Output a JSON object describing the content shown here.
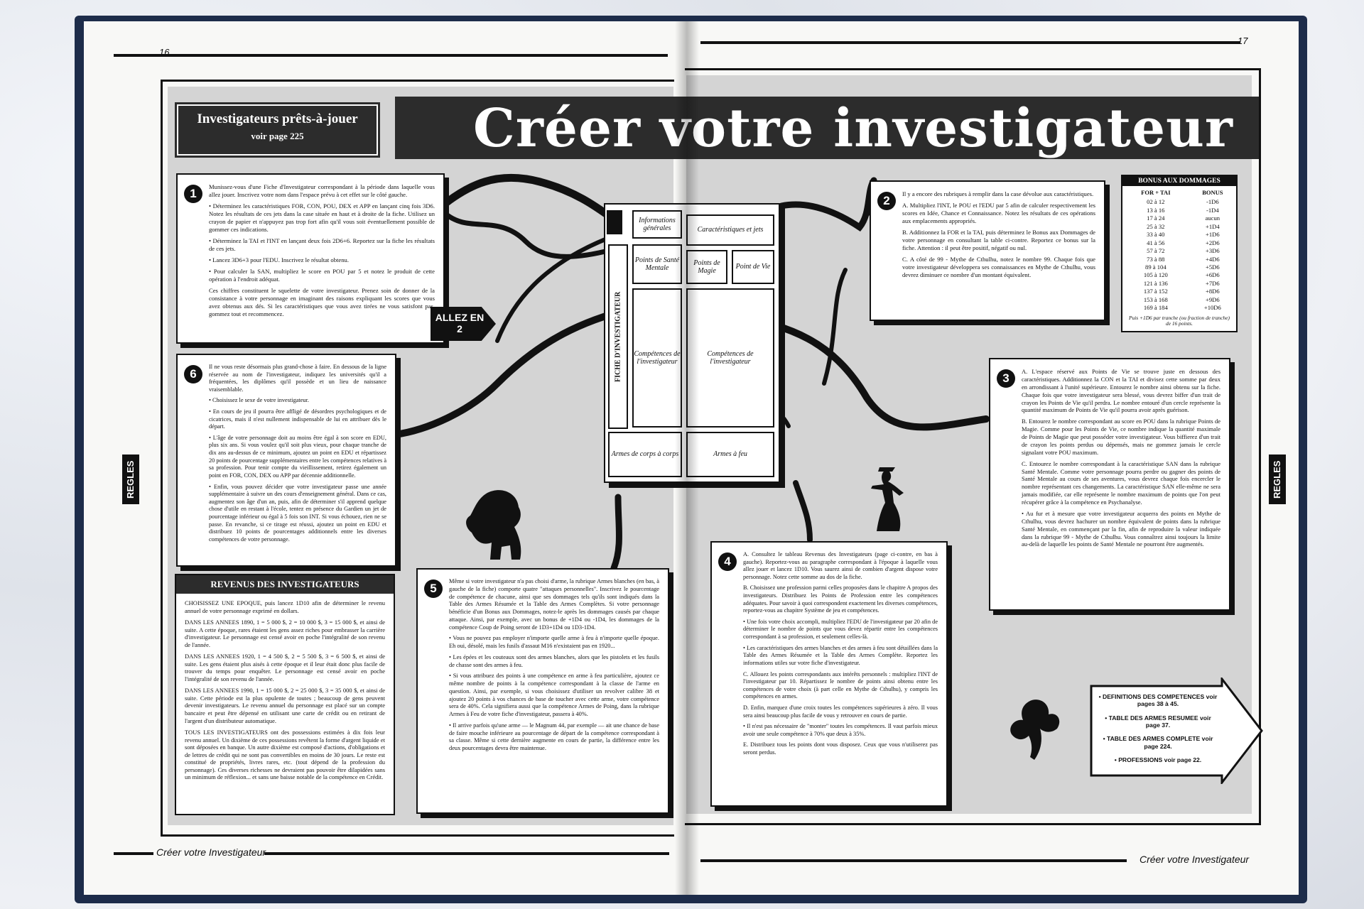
{
  "page": {
    "left_number": "16",
    "right_number": "17",
    "title": "Créer votre investigateur",
    "footer_left": "Créer votre Investigateur",
    "footer_right": "Créer votre Investigateur",
    "side_tab": "REGLES"
  },
  "ready": {
    "title": "Investigateurs prêts-à-jouer",
    "subtitle": "voir page 225"
  },
  "allez": {
    "line1": "ALLEZ EN",
    "line2": "2"
  },
  "sheet": {
    "fiche": "FICHE D'INVESTIGATEUR",
    "info": "Informations générales",
    "carac": "Caractéristiques et jets",
    "san": "Points de Santé Mentale",
    "magie": "Points de Magie",
    "vie": "Point de Vie",
    "comp_left": "Compétences de l'investigateur",
    "comp_right": "Compétences de l'investigateur",
    "armes_corps": "Armes de corps à corps",
    "armes_feu": "Armes à feu"
  },
  "box1": {
    "number": "1",
    "paragraphs": [
      "Munissez-vous d'une Fiche d'Investigateur correspondant à la période dans laquelle vous allez jouer. Inscrivez votre nom dans l'espace prévu à cet effet sur le côté gauche.",
      "• Déterminez les caractéristiques FOR, CON, POU, DEX et APP en lançant cinq fois 3D6. Notez les résultats de ces jets dans la case située en haut et à droite de la fiche. Utilisez un crayon de papier et n'appuyez pas trop fort afin qu'il vous soit éventuellement possible de gommer ces indications.",
      "• Déterminez la TAI et l'INT en lançant deux fois 2D6+6. Reportez sur la fiche les résultats de ces jets.",
      "• Lancez 3D6+3 pour l'EDU. Inscrivez le résultat obtenu.",
      "• Pour calculer la SAN, multipliez le score en POU par 5 et notez le produit de cette opération à l'endroit adéquat.",
      "Ces chiffres constituent le squelette de votre investigateur. Prenez soin de donner de la consistance à votre personnage en imaginant des raisons expliquant les scores que vous avez obtenus aux dés. Si les caractéristiques que vous avez tirées ne vous satisfont pas, gommez tout et recommencez."
    ]
  },
  "box6": {
    "number": "6",
    "paragraphs": [
      "Il ne vous reste désormais plus grand-chose à faire. En dessous de la ligne réservée au nom de l'investigateur, indiquez les universités qu'il a fréquentées, les diplômes qu'il possède et un lieu de naissance vraisemblable.",
      "• Choisissez le sexe de votre investigateur.",
      "• En cours de jeu il pourra être affligé de désordres psychologiques et de cicatrices, mais il n'est nullement indispensable de lui en attribuer dès le départ.",
      "• L'âge de votre personnage doit au moins être égal à son score en EDU, plus six ans. Si vous voulez qu'il soit plus vieux, pour chaque tranche de dix ans au-dessus de ce minimum, ajoutez un point en EDU et répartissez 20 points de pourcentage supplémentaires entre les compétences relatives à sa profession. Pour tenir compte du vieillissement, retirez également un point en FOR, CON, DEX ou APP par décennie additionnelle.",
      "• Enfin, vous pouvez décider que votre investigateur passe une année supplémentaire à suivre un des cours d'enseignement général. Dans ce cas, augmentez son âge d'un an, puis, afin de déterminer s'il apprend quelque chose d'utile en restant à l'école, tentez en présence du Gardien un jet de pourcentage inférieur ou égal à 5 fois son INT. Si vous échouez, rien ne se passe. En revanche, si ce tirage est réussi, ajoutez un point en EDU et distribuez 10 points de pourcentages additionnels entre les diverses compétences de votre personnage."
    ]
  },
  "revenus": {
    "title": "REVENUS DES INVESTIGATEURS",
    "paragraphs": [
      "CHOISISSEZ UNE EPOQUE, puis lancez 1D10 afin de déterminer le revenu annuel de votre personnage exprimé en dollars.",
      "DANS LES ANNEES 1890, 1 = 5 000 $, 2 = 10 000 $, 3 = 15 000 $, et ainsi de suite. A cette époque, rares étaient les gens assez riches pour embrasser la carrière d'investigateur. Le personnage est censé avoir en poche l'intégralité de son revenu de l'année.",
      "DANS LES ANNEES 1920, 1 = 4 500 $, 2 = 5 500 $, 3 = 6 500 $, et ainsi de suite. Les gens étaient plus aisés à cette époque et il leur était donc plus facile de trouver du temps pour enquêter. Le personnage est censé avoir en poche l'intégralité de son revenu de l'année.",
      "DANS LES ANNEES 1990, 1 = 15 000 $, 2 = 25 000 $, 3 = 35 000 $, et ainsi de suite. Cette période est la plus opulente de toutes ; beaucoup de gens peuvent devenir investigateurs. Le revenu annuel du personnage est placé sur un compte bancaire et peut être dépensé en utilisant une carte de crédit ou en retirant de l'argent d'un distributeur automatique.",
      "TOUS LES INVESTIGATEURS ont des possessions estimées à dix fois leur revenu annuel. Un dixième de ces possessions revêtent la forme d'argent liquide et sont déposées en banque. Un autre dixième est composé d'actions, d'obligations et de lettres de crédit qui ne sont pas convertibles en moins de 30 jours. Le reste est constitué de propriétés, livres rares, etc. (tout dépend de la profession du personnage). Ces diverses richesses ne devraient pas pouvoir être dilapidées sans un minimum de réflexion... et sans une baisse notable de la compétence en Crédit."
    ]
  },
  "box5": {
    "number": "5",
    "paragraphs": [
      "Même si votre investigateur n'a pas choisi d'arme, la rubrique Armes blanches (en bas, à gauche de la fiche) comporte quatre \"attaques personnelles\". Inscrivez le pourcentage de compétence de chacune, ainsi que ses dommages tels qu'ils sont indiqués dans la Table des Armes Résumée et la Table des Armes Complètes. Si votre personnage bénéficie d'un Bonus aux Dommages, notez-le après les dommages causés par chaque attaque. Ainsi, par exemple, avec un bonus de +1D4 ou -1D4, les dommages de la compétence Coup de Poing seront de 1D3+1D4 ou 1D3-1D4.",
      "• Vous ne pouvez pas employer n'importe quelle arme à feu à n'importe quelle époque. Eh oui, désolé, mais les fusils d'assaut M16 n'existaient pas en 1920...",
      "• Les épées et les couteaux sont des armes blanches, alors que les pistolets et les fusils de chasse sont des armes à feu.",
      "• Si vous attribuez des points à une compétence en arme à feu particulière, ajoutez ce même nombre de points à la compétence correspondant à la classe de l'arme en question. Ainsi, par exemple, si vous choisissez d'utiliser un revolver calibre 38 et ajoutez 20 points à vos chances de base de toucher avec cette arme, votre compétence sera de 40%. Cela signifiera aussi que la compétence Armes de Poing, dans la rubrique Armes à Feu de votre fiche d'investigateur, passera à 40%.",
      "• Il arrive parfois qu'une arme — le Magnum 44, par exemple — ait une chance de base de faire mouche inférieure au pourcentage de départ de la compétence correspondant à sa classe. Même si cette dernière augmente en cours de partie, la différence entre les deux pourcentages devra être maintenue."
    ]
  },
  "box2": {
    "number": "2",
    "paragraphs": [
      "Il y a encore des rubriques à remplir dans la case dévolue aux caractéristiques.",
      "A. Multipliez l'INT, le POU et l'EDU par 5 afin de calculer respectivement les scores en Idée, Chance et Connaissance. Notez les résultats de ces opérations aux emplacements appropriés.",
      "B. Additionnez la FOR et la TAI, puis déterminez le Bonus aux Dommages de votre personnage en consultant la table ci-contre. Reportez ce bonus sur la fiche. Attention : il peut être positif, négatif ou nul.",
      "C. A côté de 99 - Mythe de Cthulhu, notez le nombre 99. Chaque fois que votre investigateur développera ses connaissances en Mythe de Cthulhu, vous devrez diminuer ce nombre d'un montant équivalent."
    ]
  },
  "bonus": {
    "title": "BONUS AUX DOMMAGES",
    "col1": "FOR + TAI",
    "col2": "BONUS",
    "rows": [
      [
        "02 à 12",
        "-1D6"
      ],
      [
        "13 à 16",
        "-1D4"
      ],
      [
        "17 à 24",
        "aucun"
      ],
      [
        "25 à 32",
        "+1D4"
      ],
      [
        "33 à 40",
        "+1D6"
      ],
      [
        "41 à 56",
        "+2D6"
      ],
      [
        "57 à 72",
        "+3D6"
      ],
      [
        "73 à 88",
        "+4D6"
      ],
      [
        "89 à 104",
        "+5D6"
      ],
      [
        "105 à 120",
        "+6D6"
      ],
      [
        "121 à 136",
        "+7D6"
      ],
      [
        "137 à 152",
        "+8D6"
      ],
      [
        "153 à 168",
        "+9D6"
      ],
      [
        "169 à 184",
        "+10D6"
      ]
    ],
    "footnote": "Puis +1D6 par tranche (ou fraction de tranche) de 16 points."
  },
  "box3": {
    "number": "3",
    "paragraphs": [
      "A. L'espace réservé aux Points de Vie se trouve juste en dessous des caractéristiques. Additionnez la CON et la TAI et divisez cette somme par deux en arrondissant à l'unité supérieure. Entourez le nombre ainsi obtenu sur la fiche. Chaque fois que votre investigateur sera blessé, vous devrez biffer d'un trait de crayon les Points de Vie qu'il perdra. Le nombre entouré d'un cercle représente la quantité maximum de Points de Vie qu'il pourra avoir après guérison.",
      "B. Entourez le nombre correspondant au score en POU dans la rubrique Points de Magie. Comme pour les Points de Vie, ce nombre indique la quantité maximale de Points de Magie que peut posséder votre investigateur. Vous biffierez d'un trait de crayon les points perdus ou dépensés, mais ne gommez jamais le cercle signalant votre POU maximum.",
      "C. Entourez le nombre correspondant à la caractéristique SAN dans la rubrique Santé Mentale. Comme votre personnage pourra perdre ou gagner des points de Santé Mentale au cours de ses aventures, vous devrez chaque fois encercler le nombre représentant ces changements. La caractéristique SAN elle-même ne sera jamais modifiée, car elle représente le nombre maximum de points que l'on peut récupérer grâce à la compétence en Psychanalyse.",
      "• Au fur et à mesure que votre investigateur acquerra des points en Mythe de Cthulhu, vous devrez hachurer un nombre équivalent de points dans la rubrique Santé Mentale, en commençant par la fin, afin de reproduire la valeur indiquée dans la rubrique 99 - Mythe de Cthulhu. Vous connaîtrez ainsi toujours la limite au-delà de laquelle les points de Santé Mentale ne pourront être augmentés."
    ]
  },
  "box4": {
    "number": "4",
    "paragraphs": [
      "A. Consultez le tableau Revenus des Investigateurs (page ci-contre, en bas à gauche). Reportez-vous au paragraphe correspondant à l'époque à laquelle vous allez jouer et lancez 1D10. Vous saurez ainsi de combien d'argent dispose votre personnage. Notez cette somme au dos de la fiche.",
      "B. Choisissez une profession parmi celles proposées dans le chapitre A propos des investigateurs. Distribuez les Points de Profession entre les compétences adéquates. Pour savoir à quoi correspondent exactement les diverses compétences, reportez-vous au chapitre Système de jeu et compétences.",
      "• Une fois votre choix accompli, multipliez l'EDU de l'investigateur par 20 afin de déterminer le nombre de points que vous devez répartir entre les compétences correspondant à sa profession, et seulement celles-là.",
      "• Les caractéristiques des armes blanches et des armes à feu sont détaillées dans la Table des Armes Résumée et la Table des Armes Complète. Reportez les informations utiles sur votre fiche d'investigateur.",
      "C. Allouez les points correspondants aux intérêts personnels : multipliez l'INT de l'investigateur par 10. Répartissez le nombre de points ainsi obtenu entre les compétences de votre choix (à part celle en Mythe de Cthulhu), y compris les compétences en armes.",
      "D. Enfin, marquez d'une croix toutes les compétences supérieures à zéro. Il vous sera ainsi beaucoup plus facile de vous y retrouver en cours de partie.",
      "• Il n'est pas nécessaire de \"monter\" toutes les compétences. Il vaut parfois mieux avoir une seule compétence à 70% que deux à 35%.",
      "E. Distribuez tous les points dont vous disposez. Ceux que vous n'utiliserez pas seront perdus."
    ]
  },
  "refs": {
    "items": [
      "• DEFINITIONS DES COMPETENCES voir pages 38 à 45.",
      "• TABLE DES ARMES RESUMEE voir page 37.",
      "• TABLE DES ARMES COMPLETE voir page 224.",
      "• PROFESSIONS voir page 22."
    ]
  }
}
